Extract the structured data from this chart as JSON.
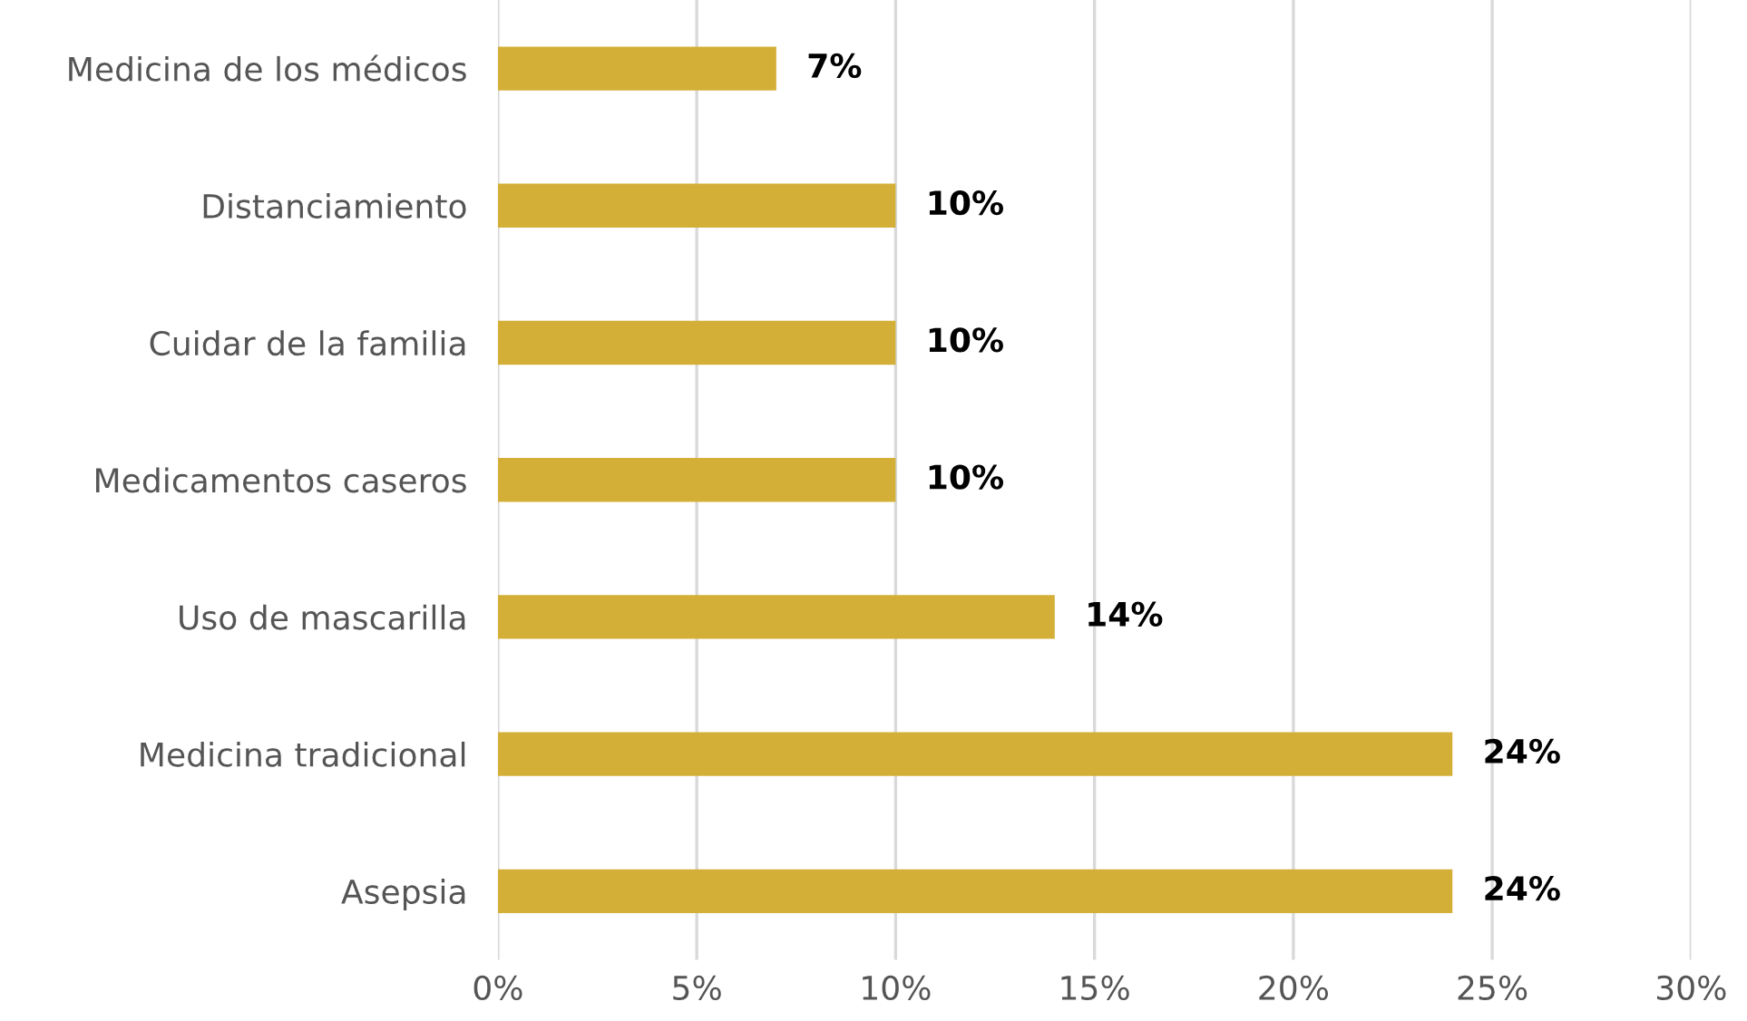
{
  "chart_data": {
    "type": "bar",
    "orientation": "horizontal",
    "categories": [
      "Medicina de los médicos",
      "Distanciamiento",
      "Cuidar de la familia",
      "Medicamentos caseros",
      "Uso de mascarilla",
      "Medicina tradicional",
      "Asepsia"
    ],
    "values": [
      7,
      10,
      10,
      10,
      14,
      24,
      24
    ],
    "value_labels": [
      "7%",
      "10%",
      "10%",
      "10%",
      "14%",
      "24%",
      "24%"
    ],
    "color": "#d3af37",
    "xlim": [
      0,
      30
    ],
    "xticks": [
      {
        "value": 0,
        "label": "0%"
      },
      {
        "value": 5,
        "label": "5%"
      },
      {
        "value": 10,
        "label": "10%"
      },
      {
        "value": 15,
        "label": "15%"
      },
      {
        "value": 20,
        "label": "20%"
      },
      {
        "value": 25,
        "label": "25%"
      },
      {
        "value": 30,
        "label": "30%"
      }
    ],
    "grid": "x",
    "legend": false
  }
}
